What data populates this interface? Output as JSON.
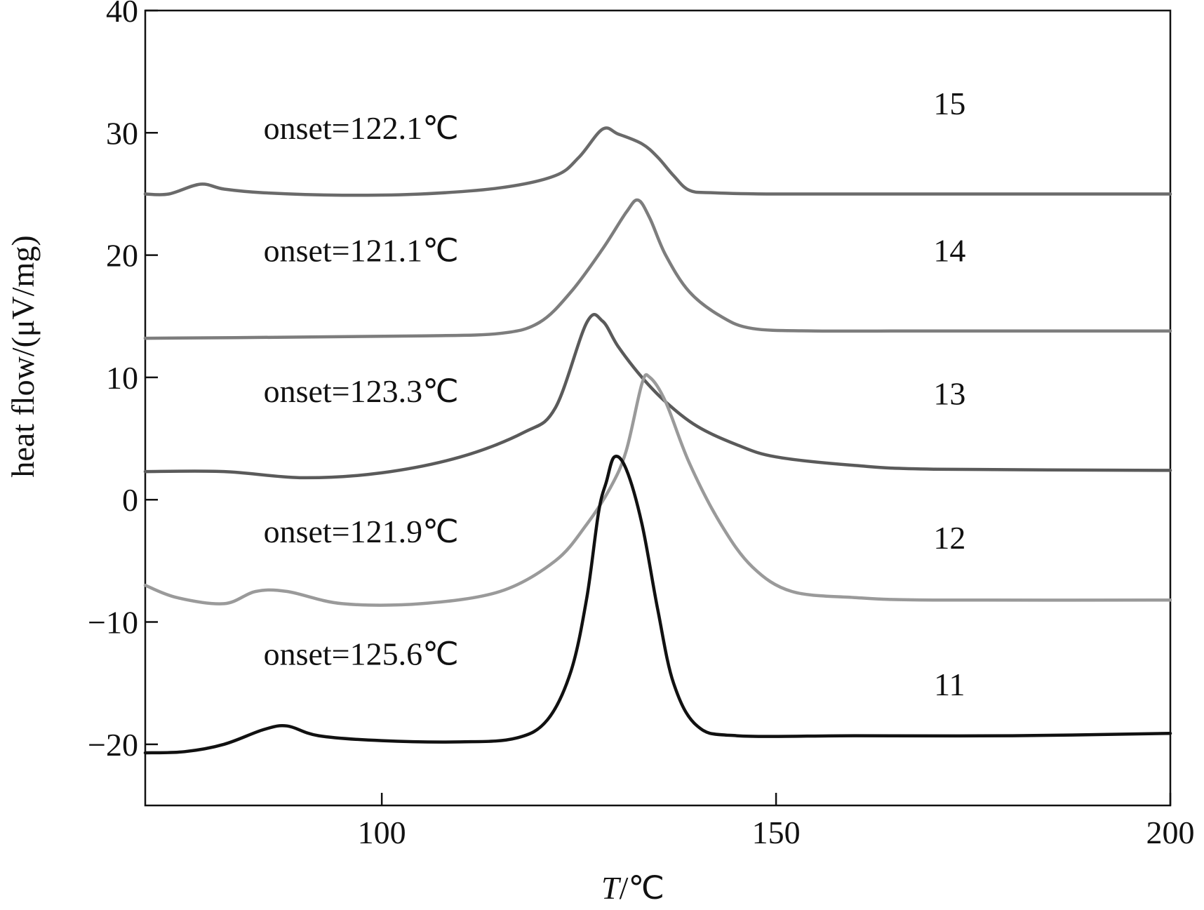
{
  "chart_data": {
    "type": "line",
    "xlabel": "T/℃",
    "xlabel_italic_part": "T",
    "xlabel_rest": "/℃",
    "ylabel": "heat flow/(μV/mg)",
    "xlim": [
      70,
      200
    ],
    "ylim": [
      -25,
      40
    ],
    "xticks": [
      100,
      150,
      200
    ],
    "yticks": [
      -20,
      -10,
      0,
      10,
      20,
      30,
      40
    ],
    "ytick_labels": [
      "−20",
      "−10",
      "0",
      "10",
      "20",
      "30",
      "40"
    ],
    "grid": false,
    "legend": "none",
    "series": [
      {
        "name": "15",
        "color": "#6a6a6a",
        "label_x": 172,
        "label_y": 31.5,
        "onset": "onset=122.1℃",
        "onset_x": 85,
        "onset_y": 29.5,
        "points": [
          [
            70,
            25
          ],
          [
            73,
            25
          ],
          [
            77,
            25.8
          ],
          [
            80,
            25.4
          ],
          [
            85,
            25.1
          ],
          [
            95,
            24.9
          ],
          [
            105,
            25
          ],
          [
            115,
            25.5
          ],
          [
            122,
            26.5
          ],
          [
            125,
            28
          ],
          [
            128,
            30.3
          ],
          [
            130,
            29.9
          ],
          [
            133,
            29.1
          ],
          [
            135,
            28
          ],
          [
            137,
            26.5
          ],
          [
            139,
            25.3
          ],
          [
            142,
            25.1
          ],
          [
            150,
            25
          ],
          [
            170,
            25
          ],
          [
            200,
            25
          ]
        ]
      },
      {
        "name": "14",
        "color": "#7d7d7d",
        "label_x": 172,
        "label_y": 19.5,
        "onset": "onset=121.1℃",
        "onset_x": 85,
        "onset_y": 19.5,
        "points": [
          [
            70,
            13.2
          ],
          [
            90,
            13.3
          ],
          [
            105,
            13.4
          ],
          [
            115,
            13.6
          ],
          [
            120,
            14.5
          ],
          [
            124,
            17
          ],
          [
            128,
            20.5
          ],
          [
            131,
            23.5
          ],
          [
            132.5,
            24.5
          ],
          [
            134,
            23
          ],
          [
            136,
            20
          ],
          [
            139,
            17
          ],
          [
            143,
            15
          ],
          [
            147,
            14
          ],
          [
            155,
            13.8
          ],
          [
            170,
            13.8
          ],
          [
            200,
            13.8
          ]
        ]
      },
      {
        "name": "13",
        "color": "#5a5a5a",
        "label_x": 172,
        "label_y": 7.8,
        "onset": "onset=123.3℃",
        "onset_x": 85,
        "onset_y": 8,
        "points": [
          [
            70,
            2.3
          ],
          [
            80,
            2.3
          ],
          [
            90,
            1.8
          ],
          [
            100,
            2.2
          ],
          [
            110,
            3.5
          ],
          [
            118,
            5.5
          ],
          [
            122,
            7.5
          ],
          [
            126,
            14.5
          ],
          [
            128,
            14.6
          ],
          [
            130,
            12.5
          ],
          [
            133,
            10
          ],
          [
            136,
            8
          ],
          [
            140,
            6
          ],
          [
            145,
            4.5
          ],
          [
            150,
            3.5
          ],
          [
            160,
            2.8
          ],
          [
            170,
            2.5
          ],
          [
            200,
            2.4
          ]
        ]
      },
      {
        "name": "12",
        "color": "#9a9a9a",
        "label_x": 172,
        "label_y": -4,
        "onset": "onset=121.9℃",
        "onset_x": 85,
        "onset_y": -3.5,
        "points": [
          [
            70,
            -7
          ],
          [
            74,
            -8
          ],
          [
            80,
            -8.5
          ],
          [
            84,
            -7.5
          ],
          [
            88,
            -7.5
          ],
          [
            95,
            -8.5
          ],
          [
            105,
            -8.5
          ],
          [
            115,
            -7.5
          ],
          [
            122,
            -5
          ],
          [
            126,
            -2
          ],
          [
            129,
            1
          ],
          [
            131,
            4
          ],
          [
            133,
            9.5
          ],
          [
            134,
            10
          ],
          [
            136,
            8
          ],
          [
            139,
            3
          ],
          [
            143,
            -2
          ],
          [
            147,
            -5.5
          ],
          [
            152,
            -7.5
          ],
          [
            160,
            -8
          ],
          [
            170,
            -8.2
          ],
          [
            200,
            -8.2
          ]
        ]
      },
      {
        "name": "11",
        "color": "#111111",
        "label_x": 172,
        "label_y": -16,
        "onset": "onset=125.6℃",
        "onset_x": 85,
        "onset_y": -13.5,
        "points": [
          [
            70,
            -20.7
          ],
          [
            75,
            -20.6
          ],
          [
            80,
            -20
          ],
          [
            85,
            -18.8
          ],
          [
            88,
            -18.5
          ],
          [
            92,
            -19.3
          ],
          [
            100,
            -19.7
          ],
          [
            110,
            -19.8
          ],
          [
            117,
            -19.5
          ],
          [
            121,
            -18
          ],
          [
            124,
            -14
          ],
          [
            126,
            -8
          ],
          [
            127.5,
            -1
          ],
          [
            128.5,
            1.5
          ],
          [
            129.5,
            3.5
          ],
          [
            131,
            2.5
          ],
          [
            133,
            -2
          ],
          [
            135,
            -9
          ],
          [
            137,
            -15
          ],
          [
            140,
            -18.5
          ],
          [
            145,
            -19.3
          ],
          [
            160,
            -19.3
          ],
          [
            180,
            -19.3
          ],
          [
            200,
            -19.1
          ]
        ]
      }
    ]
  }
}
